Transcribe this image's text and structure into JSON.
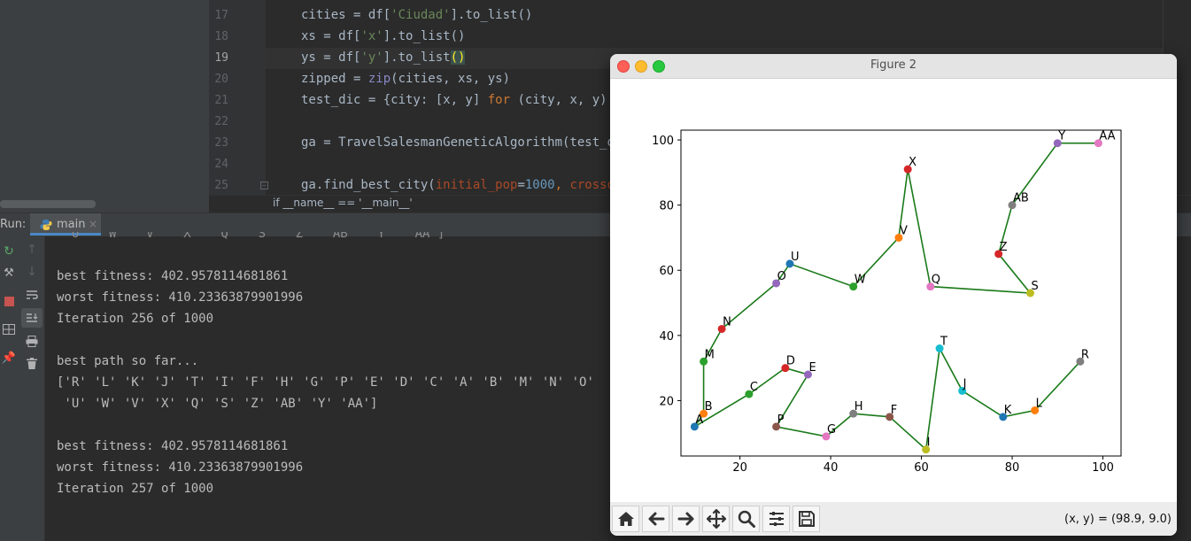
{
  "editor": {
    "line_numbers": [
      "17",
      "18",
      "19",
      "20",
      "21",
      "22",
      "23",
      "24",
      "25"
    ],
    "code": {
      "l17": {
        "a": "cities = df[",
        "s": "'Ciudad'",
        "b": "].to_list()"
      },
      "l18": {
        "a": "xs = df[",
        "s": "'x'",
        "b": "].to_list()"
      },
      "l19": {
        "a": "ys = df[",
        "s": "'y'",
        "b": ".to_list",
        "p": "()"
      },
      "l20": {
        "a": "zipped = ",
        "f": "zip",
        "b": "(cities, xs, ys)"
      },
      "l21": {
        "a": "test_dic = {city: [x, y] ",
        "k1": "for",
        "b": " (city, x, y)"
      },
      "l23": {
        "a": "ga = TravelSalesmanGeneticAlgorithm(test_d"
      },
      "l25": {
        "a": "ga.find_best_city(",
        "p1": "initial_pop",
        "e": "=",
        "n": "1000",
        ", ": "",
        "k": "crosso"
      }
    },
    "breadcrumb": "if __name__ == '__main__'"
  },
  "run_panel": {
    "label": "Run:",
    "tab_label": "main",
    "tab_close": "×",
    "console_lines": [
      " 'U'  'W'  'V'  'X'  'Q'  'S'  'Z'  'AB'  'Y'  'AA']",
      "",
      "best fitness: 402.9578114681861",
      "worst fitness: 410.23363879901996",
      "Iteration 256 of 1000",
      "",
      "best path so far...",
      "['R' 'L' 'K' 'J' 'T' 'I' 'F' 'H' 'G' 'P' 'E' 'D' 'C' 'A' 'B' 'M' 'N' 'O'",
      " 'U' 'W' 'V' 'X' 'Q' 'S' 'Z' 'AB' 'Y' 'AA']",
      "",
      "best fitness: 402.9578114681861",
      "worst fitness: 410.23363879901996",
      "Iteration 257 of 1000"
    ]
  },
  "figure": {
    "title": "Figure 2",
    "coord_readout": "(x, y) = (98.9, 9.0)",
    "toolbar_icons": [
      "home-icon",
      "back-arrow-icon",
      "forward-arrow-icon",
      "pan-icon",
      "zoom-icon",
      "configure-subplots-icon",
      "save-icon"
    ]
  },
  "chart_data": {
    "type": "scatter",
    "title": "",
    "xlabel": "",
    "ylabel": "",
    "xlim": [
      7,
      104
    ],
    "ylim": [
      3,
      103
    ],
    "xticks": [
      20,
      40,
      60,
      80,
      100
    ],
    "yticks": [
      20,
      40,
      60,
      80,
      100
    ],
    "line_color": "#1a7a1a",
    "path_order": [
      "R",
      "L",
      "K",
      "J",
      "T",
      "I",
      "F",
      "H",
      "G",
      "P",
      "E",
      "D",
      "C",
      "A",
      "B",
      "M",
      "N",
      "O",
      "U",
      "W",
      "V",
      "X",
      "Q",
      "S",
      "Z",
      "AB",
      "Y",
      "AA"
    ],
    "points": [
      {
        "label": "R",
        "x": 95,
        "y": 32,
        "color": "#7f7f7f"
      },
      {
        "label": "L",
        "x": 85,
        "y": 17,
        "color": "#ff7f0e"
      },
      {
        "label": "K",
        "x": 78,
        "y": 15,
        "color": "#1f77b4"
      },
      {
        "label": "J",
        "x": 69,
        "y": 23,
        "color": "#17becf"
      },
      {
        "label": "T",
        "x": 64,
        "y": 36,
        "color": "#17becf"
      },
      {
        "label": "I",
        "x": 61,
        "y": 5,
        "color": "#bcbd22"
      },
      {
        "label": "F",
        "x": 53,
        "y": 15,
        "color": "#8c564b"
      },
      {
        "label": "H",
        "x": 45,
        "y": 16,
        "color": "#7f7f7f"
      },
      {
        "label": "G",
        "x": 39,
        "y": 9,
        "color": "#e377c2"
      },
      {
        "label": "P",
        "x": 28,
        "y": 12,
        "color": "#8c564b"
      },
      {
        "label": "E",
        "x": 35,
        "y": 28,
        "color": "#9467bd"
      },
      {
        "label": "D",
        "x": 30,
        "y": 30,
        "color": "#d62728"
      },
      {
        "label": "C",
        "x": 22,
        "y": 22,
        "color": "#2ca02c"
      },
      {
        "label": "A",
        "x": 10,
        "y": 12,
        "color": "#1f77b4"
      },
      {
        "label": "B",
        "x": 12,
        "y": 16,
        "color": "#ff7f0e"
      },
      {
        "label": "M",
        "x": 12,
        "y": 32,
        "color": "#2ca02c"
      },
      {
        "label": "N",
        "x": 16,
        "y": 42,
        "color": "#d62728"
      },
      {
        "label": "O",
        "x": 28,
        "y": 56,
        "color": "#9467bd"
      },
      {
        "label": "U",
        "x": 31,
        "y": 62,
        "color": "#1f77b4"
      },
      {
        "label": "W",
        "x": 45,
        "y": 55,
        "color": "#2ca02c"
      },
      {
        "label": "V",
        "x": 55,
        "y": 70,
        "color": "#ff7f0e"
      },
      {
        "label": "X",
        "x": 57,
        "y": 91,
        "color": "#d62728"
      },
      {
        "label": "Q",
        "x": 62,
        "y": 55,
        "color": "#e377c2"
      },
      {
        "label": "S",
        "x": 84,
        "y": 53,
        "color": "#bcbd22"
      },
      {
        "label": "Z",
        "x": 77,
        "y": 65,
        "color": "#d62728"
      },
      {
        "label": "AB",
        "x": 80,
        "y": 80,
        "color": "#7f7f7f"
      },
      {
        "label": "Y",
        "x": 90,
        "y": 99,
        "color": "#9467bd"
      },
      {
        "label": "AA",
        "x": 99,
        "y": 99,
        "color": "#e377c2"
      }
    ]
  }
}
